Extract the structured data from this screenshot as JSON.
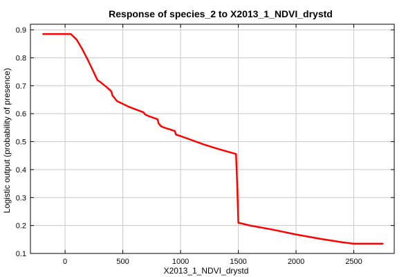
{
  "chart_data": {
    "type": "line",
    "title": "Response of species_2 to X2013_1_NDVI_drystd",
    "xlabel": "X2013_1_NDVI_drystd",
    "ylabel": "Logistic output (probability of presence)",
    "xlim": [
      -300,
      2850
    ],
    "ylim": [
      0.1,
      0.92
    ],
    "xticks": [
      0,
      500,
      1000,
      1500,
      2000,
      2500
    ],
    "xtick_labels": [
      "0",
      "500",
      "1000",
      "1500",
      "2000",
      "2500"
    ],
    "yticks": [
      0.1,
      0.2,
      0.3,
      0.4,
      0.5,
      0.6,
      0.7,
      0.8,
      0.9
    ],
    "ytick_labels": [
      "0.1",
      "0.2",
      "0.3",
      "0.4",
      "0.5",
      "0.6",
      "0.7",
      "0.8",
      "0.9"
    ],
    "grid": true,
    "series": [
      {
        "name": "response",
        "color": "#ff0000",
        "x": [
          -190,
          50,
          100,
          150,
          200,
          240,
          280,
          300,
          360,
          400,
          410,
          450,
          500,
          550,
          600,
          680,
          690,
          720,
          800,
          810,
          830,
          860,
          900,
          950,
          960,
          1000,
          1100,
          1200,
          1300,
          1400,
          1480,
          1490,
          1500,
          1600,
          1800,
          2000,
          2200,
          2400,
          2500,
          2750
        ],
        "y": [
          0.885,
          0.885,
          0.865,
          0.83,
          0.79,
          0.755,
          0.72,
          0.715,
          0.695,
          0.68,
          0.665,
          0.645,
          0.635,
          0.625,
          0.617,
          0.605,
          0.598,
          0.592,
          0.58,
          0.565,
          0.555,
          0.55,
          0.545,
          0.538,
          0.525,
          0.52,
          0.505,
          0.49,
          0.477,
          0.465,
          0.456,
          0.35,
          0.21,
          0.2,
          0.185,
          0.168,
          0.153,
          0.14,
          0.135,
          0.135
        ]
      }
    ]
  }
}
